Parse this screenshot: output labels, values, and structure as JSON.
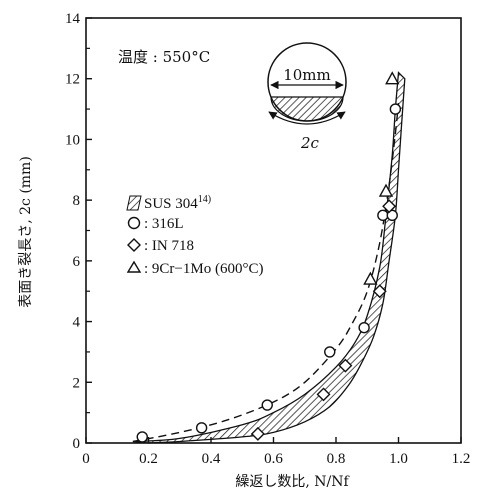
{
  "chart_data": {
    "type": "scatter",
    "xlabel": "繰返し数比, N/Nf",
    "ylabel": "表面き裂長さ, 2c (mm)",
    "xlim": [
      0,
      1.2
    ],
    "ylim": [
      0,
      14
    ],
    "x_ticks": [
      "0",
      "0.2",
      "0.4",
      "0.6",
      "0.8",
      "1.0",
      "1.2"
    ],
    "y_ticks": [
      "0",
      "2",
      "4",
      "6",
      "8",
      "10",
      "12",
      "14"
    ],
    "grid": false,
    "legend_position": "left",
    "annotation": "温度 : 550°C",
    "inset": {
      "width_label": "10mm",
      "crack_label": "2c"
    },
    "band": {
      "name": "SUS 304",
      "superscript": "14)",
      "upper": [
        [
          0.15,
          0.05
        ],
        [
          0.3,
          0.15
        ],
        [
          0.5,
          0.6
        ],
        [
          0.6,
          1.0
        ],
        [
          0.7,
          1.6
        ],
        [
          0.8,
          2.5
        ],
        [
          0.86,
          3.3
        ],
        [
          0.9,
          4.2
        ],
        [
          0.94,
          5.8
        ],
        [
          0.96,
          7.5
        ],
        [
          0.98,
          9.5
        ],
        [
          0.99,
          11.0
        ],
        [
          1.0,
          12.2
        ]
      ],
      "lower": [
        [
          1.02,
          12.0
        ],
        [
          1.01,
          10.5
        ],
        [
          1.0,
          9.0
        ],
        [
          0.99,
          7.5
        ],
        [
          0.97,
          6.0
        ],
        [
          0.95,
          4.6
        ],
        [
          0.92,
          3.5
        ],
        [
          0.88,
          2.6
        ],
        [
          0.84,
          1.9
        ],
        [
          0.78,
          1.2
        ],
        [
          0.7,
          0.7
        ],
        [
          0.6,
          0.35
        ],
        [
          0.5,
          0.2
        ],
        [
          0.3,
          0.05
        ],
        [
          0.2,
          0.0
        ]
      ]
    },
    "dashed_curve": [
      [
        0.15,
        0.05
      ],
      [
        0.3,
        0.35
      ],
      [
        0.45,
        0.75
      ],
      [
        0.6,
        1.35
      ],
      [
        0.7,
        2.0
      ],
      [
        0.8,
        3.1
      ],
      [
        0.85,
        3.9
      ],
      [
        0.9,
        5.0
      ],
      [
        0.94,
        6.6
      ],
      [
        0.97,
        8.5
      ],
      [
        0.99,
        10.2
      ],
      [
        1.0,
        11.2
      ]
    ],
    "series": [
      {
        "name": ": 316L",
        "marker": "circle",
        "points": [
          [
            0.18,
            0.2
          ],
          [
            0.37,
            0.5
          ],
          [
            0.58,
            1.25
          ],
          [
            0.78,
            3.0
          ],
          [
            0.89,
            3.8
          ],
          [
            0.95,
            7.5
          ],
          [
            0.98,
            7.5
          ],
          [
            0.99,
            11.0
          ]
        ]
      },
      {
        "name": ": IN 718",
        "marker": "diamond",
        "points": [
          [
            0.55,
            0.3
          ],
          [
            0.76,
            1.6
          ],
          [
            0.83,
            2.55
          ],
          [
            0.94,
            5.0
          ],
          [
            0.97,
            7.8
          ]
        ]
      },
      {
        "name": ": 9Cr−1Mo (600°C)",
        "marker": "triangle",
        "points": [
          [
            0.91,
            5.4
          ],
          [
            0.96,
            8.3
          ],
          [
            0.98,
            12.0
          ]
        ]
      }
    ]
  }
}
